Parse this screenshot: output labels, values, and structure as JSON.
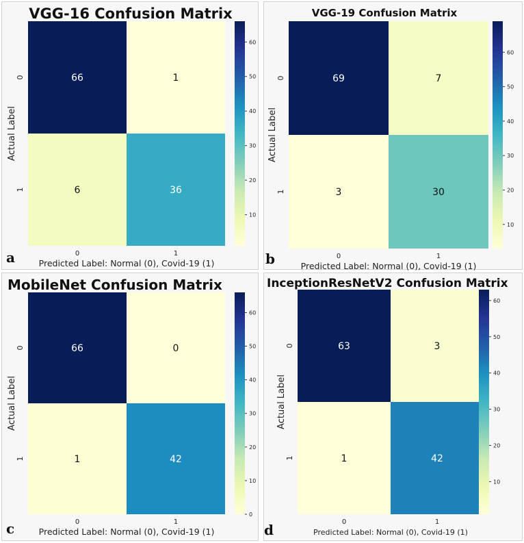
{
  "colormap": [
    "#ffffd9",
    "#edf8b1",
    "#c7e9b4",
    "#7fcdbb",
    "#41b6c4",
    "#1d91c0",
    "#225ea8",
    "#253494",
    "#081d58"
  ],
  "chart_data": [
    {
      "id": "a",
      "type": "heatmap",
      "letter": "a",
      "title": "VGG-16 Confusion Matrix",
      "xlabel": "Predicted Label: Normal (0), Covid-19 (1)",
      "ylabel": "Actual Label",
      "x_ticks": [
        "0",
        "1"
      ],
      "y_ticks": [
        "0",
        "1"
      ],
      "matrix": [
        [
          66,
          1
        ],
        [
          6,
          36
        ]
      ],
      "labels": [
        [
          "66",
          "1"
        ],
        [
          "6",
          "36"
        ]
      ],
      "vmin": 1,
      "vmax": 66,
      "colorbar_ticks": [
        10,
        20,
        30,
        40,
        50,
        60
      ],
      "colorbar_labels": [
        "10",
        "20",
        "30",
        "40",
        "50",
        "60"
      ]
    },
    {
      "id": "b",
      "type": "heatmap",
      "letter": "b",
      "title": "VGG-19 Confusion Matrix",
      "xlabel": "Predicted Label: Normal (0), Covid-19 (1)",
      "ylabel": "Actual Label",
      "x_ticks": [
        "0",
        "1"
      ],
      "y_ticks": [
        "0",
        "1"
      ],
      "matrix": [
        [
          69,
          7
        ],
        [
          3,
          30
        ]
      ],
      "labels": [
        [
          "69",
          "7"
        ],
        [
          "3",
          "30"
        ]
      ],
      "vmin": 3,
      "vmax": 69,
      "colorbar_ticks": [
        10,
        20,
        30,
        40,
        50,
        60
      ],
      "colorbar_labels": [
        "10",
        "20",
        "30",
        "40",
        "50",
        "60"
      ]
    },
    {
      "id": "c",
      "type": "heatmap",
      "letter": "c",
      "title": "MobileNet Confusion Matrix",
      "xlabel": "Predicted Label: Normal (0), Covid-19 (1)",
      "ylabel": "Actual Label",
      "x_ticks": [
        "0",
        "1"
      ],
      "y_ticks": [
        "0",
        "1"
      ],
      "matrix": [
        [
          66,
          0
        ],
        [
          1,
          42
        ]
      ],
      "labels": [
        [
          "66",
          "0"
        ],
        [
          "1",
          "42"
        ]
      ],
      "vmin": 0,
      "vmax": 66,
      "colorbar_ticks": [
        0,
        10,
        20,
        30,
        40,
        50,
        60
      ],
      "colorbar_labels": [
        "0",
        "10",
        "20",
        "30",
        "40",
        "50",
        "60"
      ]
    },
    {
      "id": "d",
      "type": "heatmap",
      "letter": "d",
      "title": "InceptionResNetV2 Confusion Matrix",
      "xlabel": "Predicted Label: Normal (0), Covid-19 (1)",
      "ylabel": "Actual Label",
      "x_ticks": [
        "0",
        "1"
      ],
      "y_ticks": [
        "0",
        "1"
      ],
      "matrix": [
        [
          63,
          3
        ],
        [
          1,
          42
        ]
      ],
      "labels": [
        [
          "63",
          "3"
        ],
        [
          "1",
          "42"
        ]
      ],
      "vmin": 1,
      "vmax": 63,
      "colorbar_ticks": [
        10,
        20,
        30,
        40,
        50,
        60
      ],
      "colorbar_labels": [
        "10",
        "20",
        "30",
        "40",
        "50",
        "60"
      ]
    }
  ]
}
